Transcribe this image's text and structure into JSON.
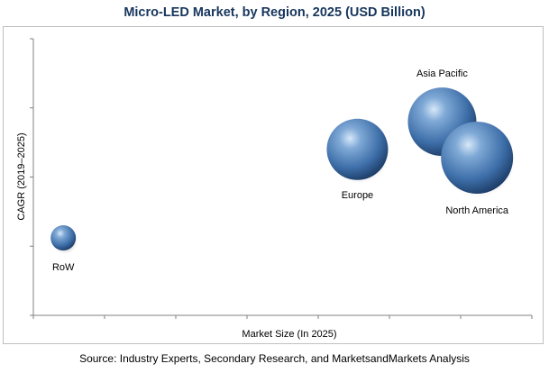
{
  "chart_data": {
    "type": "bubble",
    "title": "Micro-LED Market, by Region, 2025 (USD Billion)",
    "xlabel": "Market Size (In 2025)",
    "ylabel": "CAGR (2019–2025)",
    "xlim": [
      0,
      10
    ],
    "ylim": [
      0,
      10
    ],
    "grid": false,
    "points": [
      {
        "label": "Asia Pacific",
        "x": 8.2,
        "y": 7.0,
        "size": 38
      },
      {
        "label": "North America",
        "x": 8.9,
        "y": 5.7,
        "size": 40
      },
      {
        "label": "Europe",
        "x": 6.5,
        "y": 6.0,
        "size": 34
      },
      {
        "label": "RoW",
        "x": 0.6,
        "y": 2.8,
        "size": 14
      }
    ]
  },
  "source": "Source: Industry Experts, Secondary Research, and MarketsandMarkets Analysis"
}
